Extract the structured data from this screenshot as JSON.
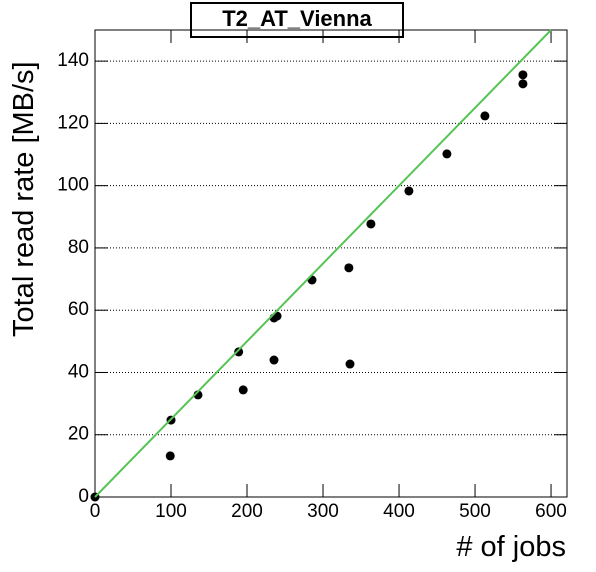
{
  "chart_data": {
    "type": "scatter",
    "title": "T2_AT_Vienna",
    "x_label": "# of jobs",
    "y_label": "Total read rate [MB/s]",
    "xlim": [
      0,
      621
    ],
    "ylim": [
      0,
      150
    ],
    "xticks": [
      0,
      100,
      200,
      300,
      400,
      500,
      600
    ],
    "yticks": [
      0,
      20,
      40,
      60,
      80,
      100,
      120,
      140
    ],
    "grid": true,
    "series": [
      {
        "color": "#000000",
        "x": [
          0,
          100,
          99,
          135.5,
          189,
          195,
          235.5,
          239.5,
          235.5,
          285.5,
          334,
          335.5,
          363,
          413,
          463,
          513,
          563,
          563
        ],
        "values": [
          0,
          24.7,
          13.2,
          32.8,
          46.6,
          34.4,
          57.5,
          58.1,
          44,
          69.7,
          73.6,
          42.7,
          87.7,
          98.3,
          110.2,
          122.4,
          135.6,
          132.7
        ]
      },
      {
        "type": "line",
        "color": "#55c455",
        "x": [
          0,
          600
        ],
        "values": [
          0,
          150
        ]
      }
    ]
  }
}
